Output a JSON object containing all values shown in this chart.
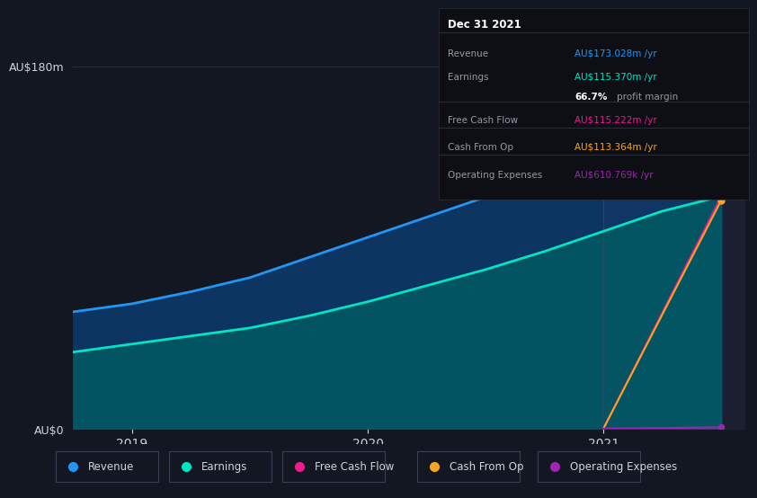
{
  "background_color": "#131722",
  "plot_bg_color": "#131722",
  "title_box": {
    "date": "Dec 31 2021",
    "rows": [
      {
        "label": "Revenue",
        "value": "AU$173.028m /yr",
        "value_color": "#2196f3"
      },
      {
        "label": "Earnings",
        "value": "AU$115.370m /yr",
        "value_color": "#00e5c4"
      },
      {
        "label": "",
        "value": "66.7% profit margin",
        "value_color": "#ffffff"
      },
      {
        "label": "Free Cash Flow",
        "value": "AU$115.222m /yr",
        "value_color": "#e91e8c"
      },
      {
        "label": "Cash From Op",
        "value": "AU$113.364m /yr",
        "value_color": "#f5a623"
      },
      {
        "label": "Operating Expenses",
        "value": "AU$610.769k /yr",
        "value_color": "#9c27b0"
      }
    ]
  },
  "series": {
    "revenue": {
      "color": "#2196f3",
      "label": "Revenue",
      "x": [
        2018.75,
        2019.0,
        2019.25,
        2019.5,
        2019.75,
        2020.0,
        2020.25,
        2020.5,
        2020.75,
        2021.0,
        2021.25,
        2021.5
      ],
      "y": [
        58,
        62,
        68,
        75,
        85,
        95,
        105,
        115,
        130,
        148,
        163,
        173
      ]
    },
    "earnings": {
      "color": "#00e5c4",
      "label": "Earnings",
      "x": [
        2018.75,
        2019.0,
        2019.25,
        2019.5,
        2019.75,
        2020.0,
        2020.25,
        2020.5,
        2020.75,
        2021.0,
        2021.25,
        2021.5
      ],
      "y": [
        38,
        42,
        46,
        50,
        56,
        63,
        71,
        79,
        88,
        98,
        108,
        115.37
      ]
    },
    "free_cash_flow": {
      "color": "#e91e8c",
      "label": "Free Cash Flow",
      "x": [
        2021.0,
        2021.5
      ],
      "y": [
        0,
        115.222
      ]
    },
    "cash_from_op": {
      "color": "#f5a623",
      "label": "Cash From Op",
      "x": [
        2021.0,
        2021.5
      ],
      "y": [
        0,
        113.364
      ]
    },
    "operating_expenses": {
      "color": "#9c27b0",
      "label": "Operating Expenses",
      "x": [
        2021.0,
        2021.5
      ],
      "y": [
        0,
        0.6
      ]
    }
  },
  "ylim": [
    0,
    180
  ],
  "xlim": [
    2018.75,
    2021.6
  ],
  "yticks_labels": [
    "AU$0",
    "AU$180m"
  ],
  "yticks_values": [
    0,
    180
  ],
  "xticks": [
    2019,
    2020,
    2021
  ],
  "xtick_labels": [
    "2019",
    "2020",
    "2021"
  ],
  "vertical_line_x": 2021.0,
  "legend_items": [
    {
      "label": "Revenue",
      "color": "#2196f3"
    },
    {
      "label": "Earnings",
      "color": "#00e5c4"
    },
    {
      "label": "Free Cash Flow",
      "color": "#e91e8c"
    },
    {
      "label": "Cash From Op",
      "color": "#f5a623"
    },
    {
      "label": "Operating Expenses",
      "color": "#9c27b0"
    }
  ],
  "grid_color": "#2a2e39",
  "text_color": "#9598a1",
  "label_color": "#d1d4dc"
}
